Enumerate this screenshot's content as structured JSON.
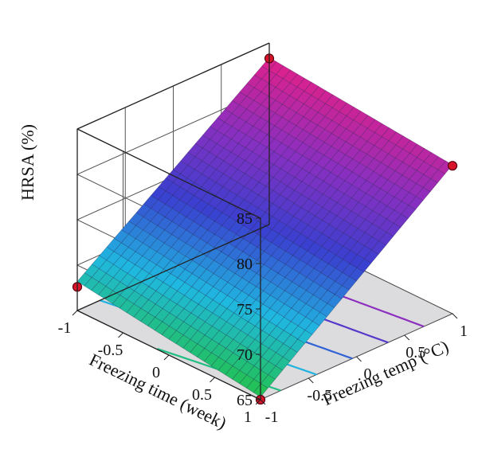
{
  "chart_data": {
    "type": "surface3d",
    "title": "",
    "zlabel": "HRSA (%)",
    "xlabel": "Freezing temp (°C)",
    "ylabel": "Freezing time (week)",
    "x_ticks": [
      "-1",
      "-0.5",
      "0",
      "0.5",
      "1"
    ],
    "y_ticks": [
      "-1",
      "-0.5",
      "0",
      "0.5",
      "1"
    ],
    "z_ticks": [
      "65",
      "70",
      "75",
      "80",
      "85"
    ],
    "xlim": [
      -1,
      1
    ],
    "ylim": [
      -1,
      1
    ],
    "zlim": [
      65,
      85
    ],
    "surface_corners": [
      {
        "x": -1,
        "y": -1,
        "z": 68.2
      },
      {
        "x": 1,
        "y": -1,
        "z": 83.4
      },
      {
        "x": -1,
        "y": 1,
        "z": 65.3
      },
      {
        "x": 1,
        "y": 1,
        "z": 81.4
      }
    ],
    "design_points": [
      {
        "x": -1,
        "y": -1,
        "z": 67.6
      },
      {
        "x": 1,
        "y": -1,
        "z": 83.3
      },
      {
        "x": -1,
        "y": 1,
        "z": 65.0
      },
      {
        "x": 1,
        "y": 1,
        "z": 81.3
      }
    ],
    "grid": true,
    "colormap": [
      "#22c24a",
      "#1fb8e0",
      "#3a3fd0",
      "#8a2fc0",
      "#e0208a"
    ]
  }
}
